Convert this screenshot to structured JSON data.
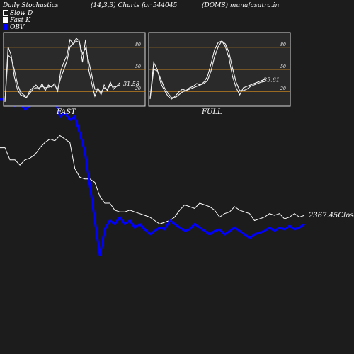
{
  "header": {
    "title_left": "Daily Stochastics",
    "title_mid": "(14,3,3) Charts for 544045",
    "title_right": "(DOMS) munafasutra.in"
  },
  "legend": [
    {
      "label": "Slow  D",
      "color": "#1c1c1c"
    },
    {
      "label": "Fast K",
      "color": "#ffffff"
    },
    {
      "label": "OBV",
      "color": "#0000ff"
    }
  ],
  "colors": {
    "background": "#1c1c1c",
    "panel": "#2a2a2a",
    "level_line": "#c08020",
    "price": "#ffffff",
    "obv": "#0000ff"
  },
  "chart_data": [
    {
      "type": "line",
      "panel": "FAST",
      "ylim": [
        0,
        100
      ],
      "levels": [
        20,
        50,
        80
      ],
      "tick_labels": [
        "80",
        "50",
        "20"
      ],
      "last_value_label": "31.58",
      "series": [
        {
          "name": "Fast K",
          "values": [
            5,
            82,
            70,
            40,
            22,
            14,
            12,
            10,
            20,
            24,
            28,
            22,
            30,
            20,
            28,
            25,
            30,
            18,
            48,
            60,
            70,
            92,
            86,
            94,
            90,
            60,
            92,
            50,
            30,
            12,
            24,
            14,
            28,
            20,
            32,
            22,
            26,
            31
          ]
        },
        {
          "name": "Slow  D",
          "values": [
            4,
            70,
            66,
            50,
            30,
            18,
            14,
            12,
            16,
            22,
            24,
            24,
            26,
            24,
            25,
            26,
            27,
            22,
            38,
            50,
            62,
            82,
            86,
            90,
            88,
            72,
            80,
            62,
            42,
            22,
            22,
            18,
            24,
            22,
            28,
            25,
            26,
            28
          ]
        }
      ]
    },
    {
      "type": "line",
      "panel": "FULL",
      "ylim": [
        0,
        100
      ],
      "levels": [
        20,
        50,
        80
      ],
      "tick_labels": [
        "80",
        "50",
        "20"
      ],
      "last_value_label": "35.61",
      "series": [
        {
          "name": "Fast K",
          "values": [
            10,
            60,
            50,
            30,
            20,
            12,
            8,
            12,
            18,
            22,
            20,
            24,
            26,
            30,
            28,
            32,
            40,
            58,
            78,
            88,
            90,
            82,
            66,
            40,
            24,
            14,
            24,
            26,
            28,
            30,
            32,
            34,
            36
          ]
        },
        {
          "name": "Slow  D",
          "values": [
            8,
            50,
            48,
            36,
            24,
            16,
            10,
            10,
            14,
            18,
            20,
            22,
            24,
            26,
            28,
            30,
            34,
            48,
            68,
            82,
            90,
            86,
            74,
            52,
            32,
            20,
            20,
            22,
            26,
            28,
            30,
            32,
            33
          ]
        }
      ]
    },
    {
      "type": "line",
      "panel": "price-obv",
      "price_label": "2367.45",
      "price_label_suffix": "Close",
      "ylim": [
        0,
        100
      ],
      "series": [
        {
          "name": "Close",
          "values": [
            72,
            72,
            65,
            65,
            62,
            65,
            66,
            68,
            72,
            75,
            77,
            76,
            79,
            77,
            75,
            60,
            55,
            54,
            54,
            52,
            44,
            40,
            40,
            36,
            35,
            35,
            36,
            35,
            34,
            33,
            32,
            30,
            28,
            29,
            30,
            32,
            36,
            39,
            38,
            37,
            40,
            39,
            38,
            36,
            32,
            34,
            35,
            38,
            36,
            35,
            34,
            30,
            31,
            32,
            34,
            33,
            34,
            31,
            32,
            34,
            32,
            33
          ]
        },
        {
          "name": "OBV",
          "values": [
            100,
            100,
            100,
            96,
            98,
            94,
            96,
            100,
            100,
            100,
            100,
            100,
            90,
            92,
            88,
            90,
            80,
            70,
            50,
            30,
            10,
            25,
            30,
            28,
            32,
            28,
            30,
            26,
            28,
            25,
            22,
            24,
            26,
            25,
            30,
            28,
            26,
            24,
            25,
            28,
            26,
            24,
            22,
            24,
            25,
            22,
            24,
            26,
            24,
            22,
            20,
            22,
            23,
            24,
            26,
            24,
            26,
            25,
            27,
            25,
            26,
            28
          ]
        }
      ]
    }
  ],
  "panel_labels": {
    "fast": "FAST",
    "full": "FULL"
  }
}
